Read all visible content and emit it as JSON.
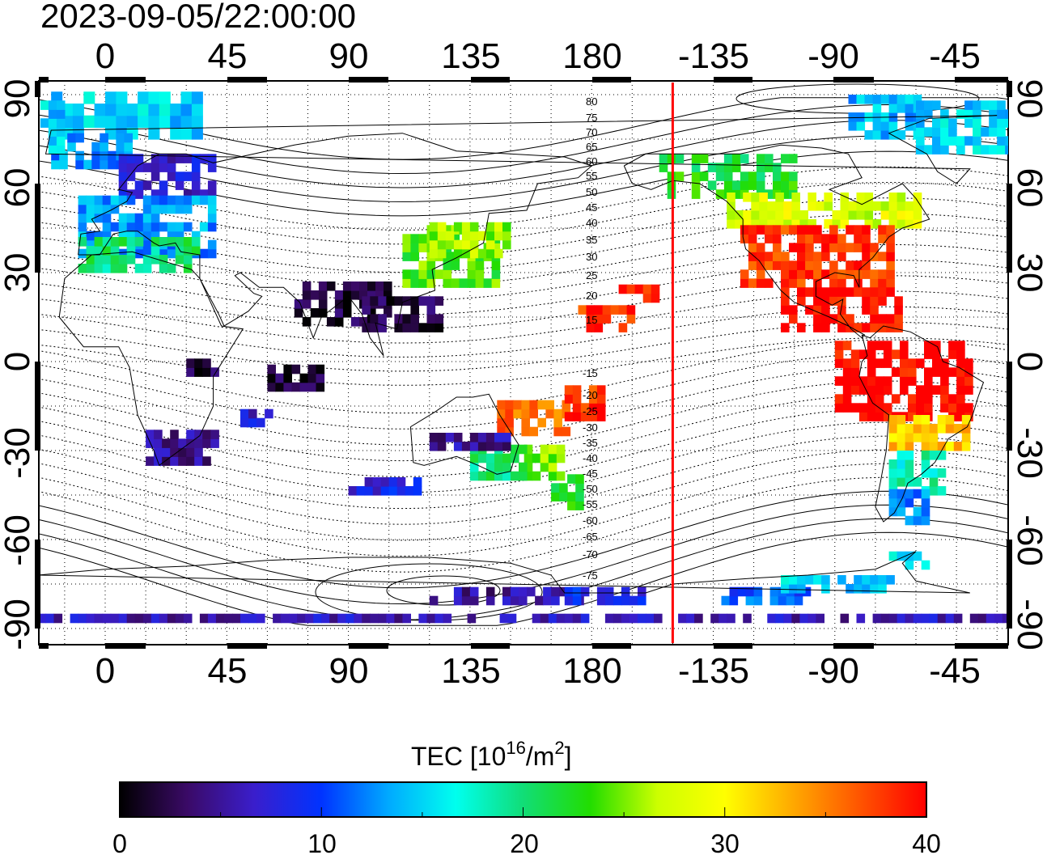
{
  "title": "2023-09-05/22:00:00",
  "map": {
    "lon_ticks_top": [
      "0",
      "45",
      "90",
      "135",
      "180",
      "-135",
      "-90",
      "-45"
    ],
    "lon_ticks_bottom": [
      "0",
      "45",
      "90",
      "135",
      "180",
      "-135",
      "-90",
      "-45"
    ],
    "lat_ticks_left": [
      "90",
      "60",
      "30",
      "0",
      "-30",
      "-60",
      "-90"
    ],
    "lat_ticks_right": [
      "90",
      "60",
      "30",
      "0",
      "-30",
      "-60",
      "-90"
    ],
    "contour_labels_north": [
      "80",
      "75",
      "70",
      "65",
      "60",
      "55",
      "50",
      "45",
      "40",
      "35",
      "30",
      "25",
      "20",
      "15"
    ],
    "contour_labels_south": [
      "-15",
      "-20",
      "-25",
      "-30",
      "-35",
      "-40",
      "-45",
      "-50",
      "-55",
      "-60",
      "-65",
      "-70",
      "-75"
    ],
    "terminator_color": "#ff0000",
    "terminator_lon": -150
  },
  "colorbar": {
    "label": "TEC  [10",
    "label_sup1": "16",
    "label_mid": "/m",
    "label_sup2": "2",
    "label_end": "]",
    "ticks": [
      "0",
      "10",
      "20",
      "30",
      "40"
    ],
    "min": 0,
    "max": 40,
    "colors": [
      "#000000",
      "#3a0a66",
      "#3a1ecc",
      "#0033ff",
      "#00aaff",
      "#00ffee",
      "#11dd77",
      "#22dd00",
      "#ccff00",
      "#ffff00",
      "#ffaa00",
      "#ff5500",
      "#ff0000"
    ]
  }
}
